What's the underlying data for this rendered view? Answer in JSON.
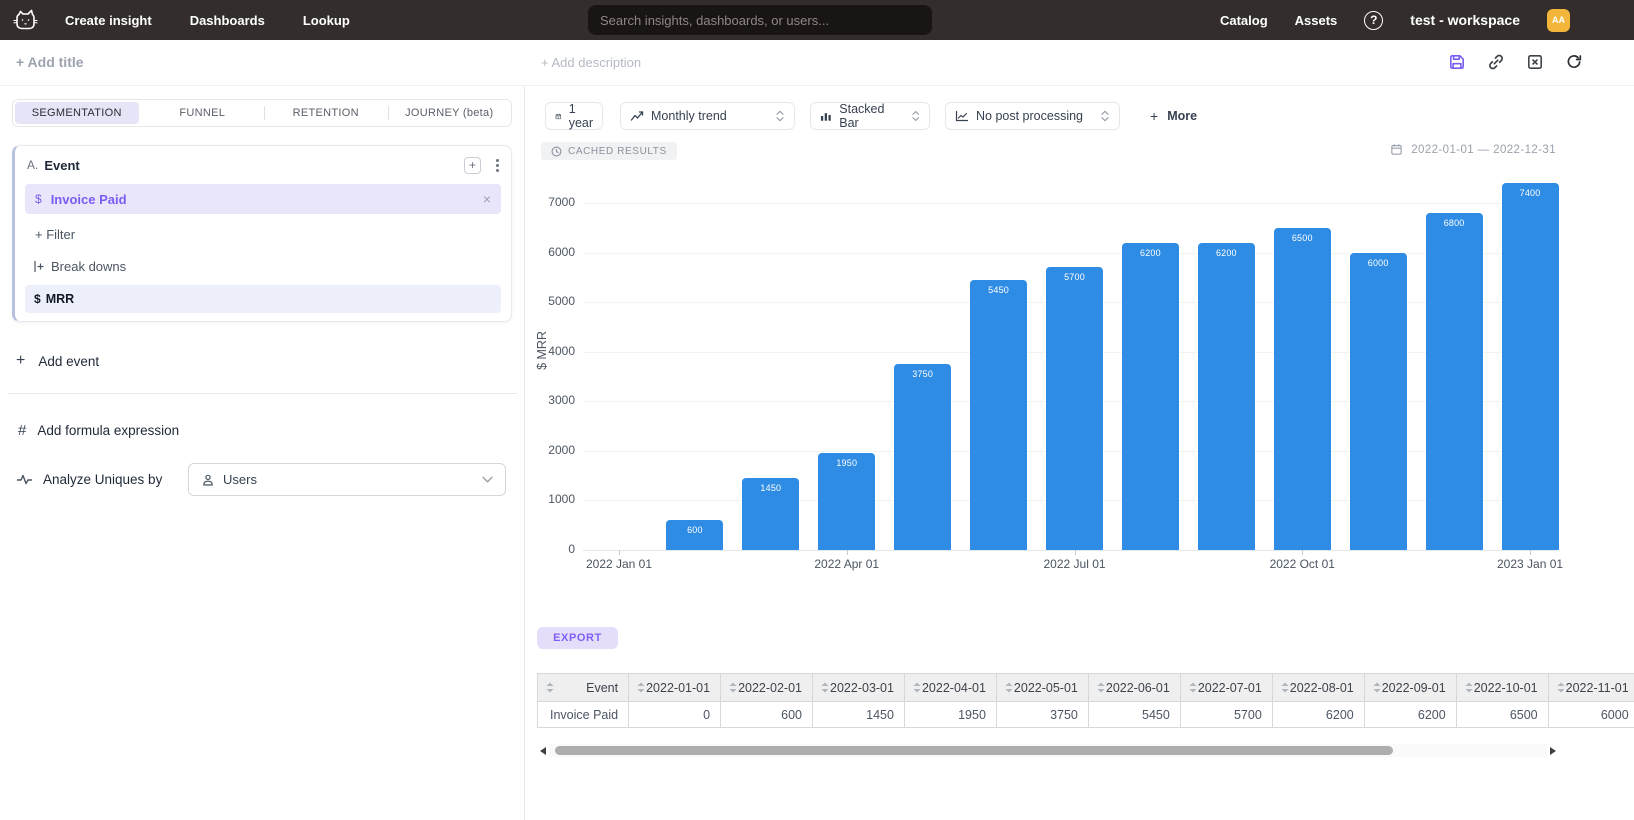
{
  "colors": {
    "accent_purple": "#7B5CF0",
    "bar_blue": "#2E8CE4",
    "avatar_bg": "#F4B63A",
    "nav_bg": "#332E2B"
  },
  "nav": {
    "items": [
      "Create insight",
      "Dashboards",
      "Lookup"
    ],
    "search_placeholder": "Search insights, dashboards, or users...",
    "right_items": [
      "Catalog",
      "Assets"
    ],
    "help_glyph": "?",
    "workspace": "test - workspace",
    "avatar_initials": "AA"
  },
  "header": {
    "add_title": "+ Add title",
    "add_description": "+ Add description"
  },
  "builder": {
    "tabs": [
      {
        "label": "SEGMENTATION",
        "active": true
      },
      {
        "label": "FUNNEL",
        "active": false
      },
      {
        "label": "RETENTION",
        "active": false
      },
      {
        "label": "JOURNEY (beta)",
        "active": false
      }
    ],
    "event_group": {
      "prefix": "A.",
      "title": "Event",
      "event_symbol": "$",
      "event_label": "Invoice Paid",
      "filter_label": "+ Filter",
      "breakdowns_label": "Break downs",
      "breakdown_symbol": "$",
      "breakdown_label": "MRR"
    },
    "add_event_label": "Add event",
    "add_formula_label": "Add formula expression",
    "analyze_label": "Analyze Uniques by",
    "analyze_value": "Users"
  },
  "toolbar": {
    "date_range_button": "1 year",
    "trend_select": "Monthly trend",
    "chart_type_select": "Stacked Bar",
    "post_processing_select": "No post processing",
    "more_label": "More"
  },
  "result": {
    "cached_badge": "CACHED RESULTS",
    "date_range": "2022-01-01 — 2022-12-31",
    "export_label": "EXPORT"
  },
  "chart_data": {
    "type": "bar",
    "title": "",
    "ylabel": "$ MRR",
    "x": [
      "2022-01-01",
      "2022-02-01",
      "2022-03-01",
      "2022-04-01",
      "2022-05-01",
      "2022-06-01",
      "2022-07-01",
      "2022-08-01",
      "2022-09-01",
      "2022-10-01",
      "2022-11-01",
      "2022-12-01",
      "2023-01-01"
    ],
    "series": [
      {
        "name": "Invoice Paid",
        "values": [
          0,
          600,
          1450,
          1950,
          3750,
          5450,
          5700,
          6200,
          6200,
          6500,
          6000,
          6800,
          7400
        ]
      }
    ],
    "x_tick_labels": [
      "2022 Jan 01",
      "2022 Apr 01",
      "2022 Jul 01",
      "2022 Oct 01",
      "2023 Jan 01"
    ],
    "x_tick_indices": [
      0,
      3,
      6,
      9,
      12
    ],
    "y_ticks": [
      0,
      1000,
      2000,
      3000,
      4000,
      5000,
      6000,
      7000
    ],
    "ylim": [
      0,
      7560
    ],
    "grid": true,
    "bar_color": "#2E8CE4",
    "legend": [
      "INVOICE PAID"
    ],
    "legend_position": "bottom"
  },
  "table": {
    "columns": [
      "Event",
      "2022-01-01",
      "2022-02-01",
      "2022-03-01",
      "2022-04-01",
      "2022-05-01",
      "2022-06-01",
      "2022-07-01",
      "2022-08-01",
      "2022-09-01",
      "2022-10-01",
      "2022-11-01"
    ],
    "rows": [
      {
        "event": "Invoice Paid",
        "values": [
          "0",
          "600",
          "1450",
          "1950",
          "3750",
          "5450",
          "5700",
          "6200",
          "6200",
          "6500",
          "6000"
        ]
      }
    ]
  }
}
